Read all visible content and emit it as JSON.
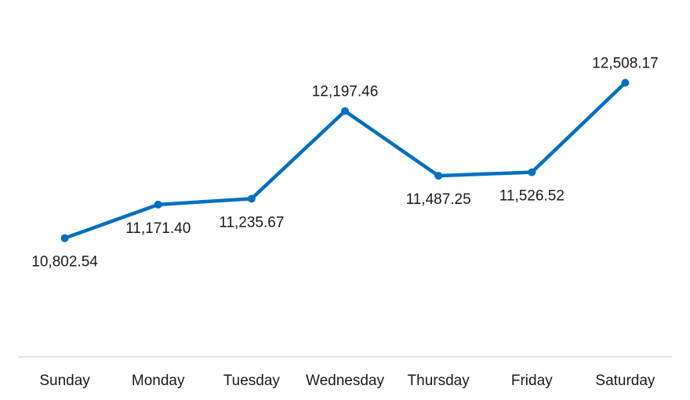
{
  "chart_data": {
    "type": "line",
    "categories": [
      "Sunday",
      "Monday",
      "Tuesday",
      "Wednesday",
      "Thursday",
      "Friday",
      "Saturday"
    ],
    "series": [
      {
        "values": [
          10802.54,
          11171.4,
          11235.67,
          12197.46,
          11487.25,
          11526.52,
          12508.17
        ],
        "labels": [
          "10,802.54",
          "11,171.40",
          "11,235.67",
          "12,197.46",
          "11,487.25",
          "11,526.52",
          "12,508.17"
        ]
      }
    ],
    "label_positions": [
      "below",
      "below",
      "below",
      "above",
      "below",
      "below",
      "above"
    ],
    "title": "",
    "xlabel": "",
    "ylabel": "",
    "ylim": [
      9500,
      12900
    ],
    "grid": false,
    "legend": "none",
    "colors": {
      "line": "#0070c0",
      "axis": "#d9d9d9",
      "text": "#1a1a1a"
    }
  }
}
